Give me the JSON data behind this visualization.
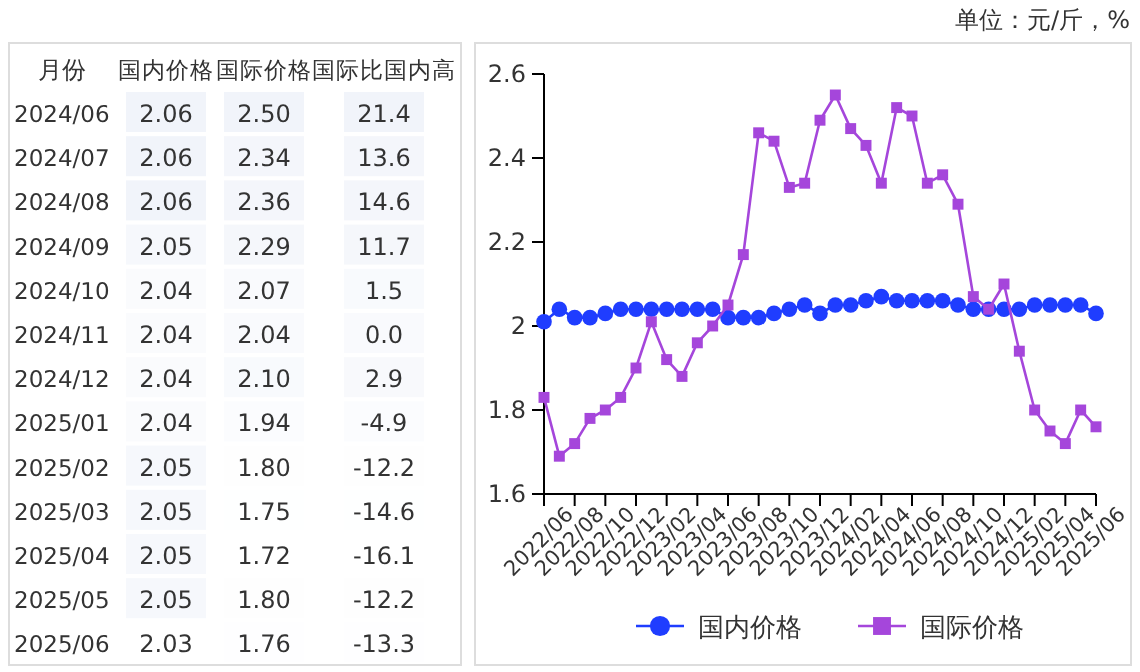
{
  "chart_data": [
    {
      "type": "heatmap",
      "ylabel": "月份",
      "categories": [
        "国内价格",
        "国际价格",
        "国际比国内高"
      ],
      "y_categories": [
        "2024/06",
        "2024/07",
        "2024/08",
        "2024/09",
        "2024/10",
        "2024/11",
        "2024/12",
        "2025/01",
        "2025/02",
        "2025/03",
        "2025/04",
        "2025/05",
        "2025/06"
      ],
      "cells": [
        [
          2.06,
          2.5,
          21.4
        ],
        [
          2.06,
          2.34,
          13.6
        ],
        [
          2.06,
          2.36,
          14.6
        ],
        [
          2.05,
          2.29,
          11.7
        ],
        [
          2.04,
          2.07,
          1.5
        ],
        [
          2.04,
          2.04,
          0
        ],
        [
          2.04,
          2.1,
          2.9
        ],
        [
          2.04,
          1.94,
          -4.9
        ],
        [
          2.05,
          1.8,
          -12.2
        ],
        [
          2.05,
          1.75,
          -14.6
        ],
        [
          2.05,
          1.72,
          -16.1
        ],
        [
          2.05,
          1.8,
          -12.2
        ],
        [
          2.03,
          1.76,
          -13.3
        ]
      ],
      "cell_labels": [
        [
          "2.06",
          "2.50",
          "21.4"
        ],
        [
          "2.06",
          "2.34",
          "13.6"
        ],
        [
          "2.06",
          "2.36",
          "14.6"
        ],
        [
          "2.05",
          "2.29",
          "11.7"
        ],
        [
          "2.04",
          "2.07",
          "1.5"
        ],
        [
          "2.04",
          "2.04",
          "0.0"
        ],
        [
          "2.04",
          "2.10",
          "2.9"
        ],
        [
          "2.04",
          "1.94",
          "-4.9"
        ],
        [
          "2.05",
          "1.80",
          "-12.2"
        ],
        [
          "2.05",
          "1.75",
          "-14.6"
        ],
        [
          "2.05",
          "1.72",
          "-16.1"
        ],
        [
          "2.05",
          "1.80",
          "-12.2"
        ],
        [
          "2.03",
          "1.76",
          "-13.3"
        ]
      ]
    },
    {
      "type": "line",
      "annotations": [
        "单位：元/斤，%"
      ],
      "categories": [
        "2022/06",
        null,
        "2022/08",
        null,
        "2022/10",
        null,
        "2022/12",
        null,
        "2023/02",
        null,
        "2023/04",
        null,
        "2023/06",
        null,
        "2023/08",
        null,
        "2023/10",
        null,
        "2023/12",
        null,
        "2024/02",
        null,
        "2024/04",
        null,
        "2024/06",
        null,
        "2024/08",
        null,
        "2024/10",
        null,
        "2024/12",
        null,
        "2025/02",
        null,
        "2025/04",
        null,
        "2025/06"
      ],
      "ylim": [
        1.6,
        2.6
      ],
      "yticks": [
        1.6,
        1.8,
        2,
        2.2,
        2.4,
        2.6
      ],
      "legend": "bottom",
      "series": [
        {
          "name": "国内价格",
          "color": "#1f3dff",
          "marker": "circle",
          "values": [
            2.01,
            2.04,
            2.02,
            2.02,
            2.03,
            2.04,
            2.04,
            2.04,
            2.04,
            2.04,
            2.04,
            2.04,
            2.02,
            2.02,
            2.02,
            2.03,
            2.04,
            2.05,
            2.03,
            2.05,
            2.05,
            2.06,
            2.07,
            2.06,
            2.06,
            2.06,
            2.06,
            2.05,
            2.04,
            2.04,
            2.04,
            2.04,
            2.05,
            2.05,
            2.05,
            2.05,
            2.03
          ]
        },
        {
          "name": "国际价格",
          "color": "#a546db",
          "marker": "square",
          "values": [
            1.83,
            1.69,
            1.72,
            1.78,
            1.8,
            1.83,
            1.9,
            2.01,
            1.92,
            1.88,
            1.96,
            2.0,
            2.05,
            2.17,
            2.46,
            2.44,
            2.33,
            2.34,
            2.49,
            2.55,
            2.47,
            2.43,
            2.34,
            2.52,
            2.5,
            2.34,
            2.36,
            2.29,
            2.07,
            2.04,
            2.1,
            1.94,
            1.8,
            1.75,
            1.72,
            1.8,
            1.76
          ]
        }
      ]
    }
  ]
}
